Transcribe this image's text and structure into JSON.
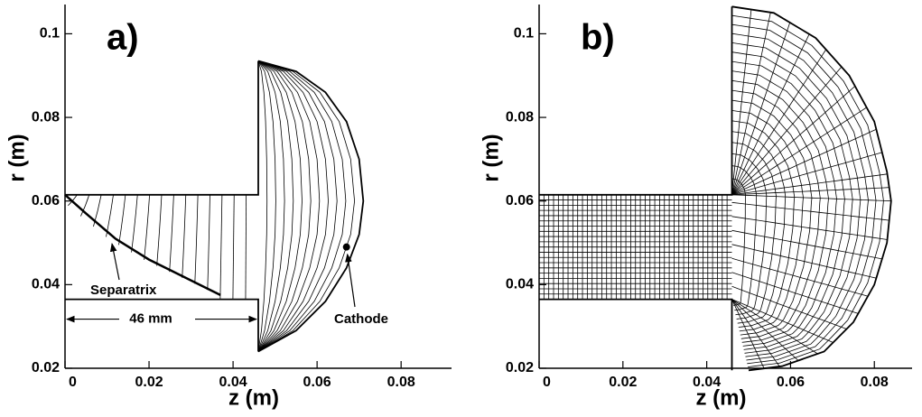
{
  "chart_data": [
    {
      "type": "mesh",
      "panel_label": "a)",
      "x_label": "z (m)",
      "y_label": "r (m)",
      "xlim": [
        0,
        0.092
      ],
      "ylim": [
        0.02,
        0.107
      ],
      "xticks": [
        0,
        0.02,
        0.04,
        0.06,
        0.08
      ],
      "yticks": [
        0.02,
        0.04,
        0.06,
        0.08,
        0.1
      ],
      "channel": {
        "x": [
          0,
          0.046
        ],
        "y": [
          0.0365,
          0.0615
        ]
      },
      "plume_wall": {
        "y": [
          0.024,
          0.0935
        ]
      },
      "arc": {
        "x": [
          0.046,
          0.055,
          0.062,
          0.067,
          0.07,
          0.071,
          0.07,
          0.067,
          0.062,
          0.055,
          0.046
        ],
        "y": [
          0.0935,
          0.091,
          0.086,
          0.079,
          0.07,
          0.06,
          0.052,
          0.044,
          0.036,
          0.029,
          0.024
        ]
      },
      "separatrix": {
        "x": [
          0,
          0.005,
          0.012,
          0.02,
          0.028,
          0.034,
          0.037
        ],
        "y": [
          0.0615,
          0.057,
          0.051,
          0.046,
          0.042,
          0.039,
          0.0375
        ]
      },
      "cathode": {
        "x": 0.067,
        "y": 0.049
      },
      "annotations": [
        "Separatrix",
        "46 mm",
        "Cathode"
      ]
    },
    {
      "type": "mesh",
      "panel_label": "b)",
      "x_label": "z (m)",
      "y_label": "r (m)",
      "xlim": [
        0,
        0.089
      ],
      "ylim": [
        0.02,
        0.107
      ],
      "xticks": [
        0,
        0.02,
        0.04,
        0.06,
        0.08
      ],
      "yticks": [
        0.02,
        0.04,
        0.06,
        0.08,
        0.1
      ],
      "channel": {
        "x": [
          0,
          0.046
        ],
        "y": [
          0.0365,
          0.0615
        ]
      },
      "plume_wall": {
        "y": [
          0.0195,
          0.1065
        ]
      },
      "arc": {
        "x": [
          0.046,
          0.056,
          0.066,
          0.074,
          0.08,
          0.083,
          0.084,
          0.083,
          0.08,
          0.075,
          0.068,
          0.058,
          0.05
        ],
        "y": [
          0.1065,
          0.105,
          0.099,
          0.09,
          0.079,
          0.067,
          0.06,
          0.05,
          0.04,
          0.031,
          0.024,
          0.0205,
          0.0195
        ]
      }
    }
  ]
}
